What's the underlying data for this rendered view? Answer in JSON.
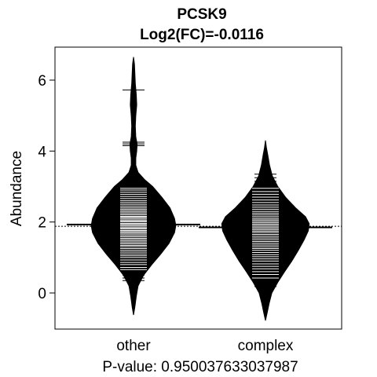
{
  "chart_data": {
    "type": "beanplot",
    "title": "PCSK9",
    "subtitle": "Log2(FC)=-0.0116",
    "xlabel": "P-value: 0.950037633037987",
    "ylabel": "Abundance",
    "ylim": [
      -1.0,
      6.8
    ],
    "yticks": [
      0,
      2,
      4,
      6
    ],
    "categories": [
      "other",
      "complex"
    ],
    "overall_mean": 1.88,
    "grid": false,
    "legend": "none",
    "colors": {
      "bean": "#000000",
      "lines": "#ffffff",
      "background": "#ffffff"
    },
    "groups": [
      {
        "name": "other",
        "mean": 1.93,
        "density_profile": [
          [
            -0.62,
            0.0
          ],
          [
            -0.4,
            0.03
          ],
          [
            -0.1,
            0.06
          ],
          [
            0.2,
            0.1
          ],
          [
            0.5,
            0.22
          ],
          [
            0.8,
            0.4
          ],
          [
            1.1,
            0.6
          ],
          [
            1.4,
            0.78
          ],
          [
            1.7,
            0.9
          ],
          [
            1.9,
            0.93
          ],
          [
            2.1,
            0.9
          ],
          [
            2.4,
            0.8
          ],
          [
            2.7,
            0.62
          ],
          [
            3.0,
            0.42
          ],
          [
            3.2,
            0.24
          ],
          [
            3.4,
            0.1
          ],
          [
            3.6,
            0.05
          ],
          [
            3.8,
            0.05
          ],
          [
            4.0,
            0.07
          ],
          [
            4.2,
            0.08
          ],
          [
            4.4,
            0.05
          ],
          [
            4.7,
            0.04
          ],
          [
            5.0,
            0.05
          ],
          [
            5.3,
            0.07
          ],
          [
            5.6,
            0.06
          ],
          [
            5.9,
            0.04
          ],
          [
            6.2,
            0.03
          ],
          [
            6.45,
            0.02
          ],
          [
            6.65,
            0.0
          ]
        ],
        "observations": [
          0.35,
          0.42,
          0.5,
          0.58,
          0.66,
          0.72,
          0.8,
          0.86,
          0.93,
          1.0,
          1.05,
          1.1,
          1.15,
          1.2,
          1.25,
          1.3,
          1.34,
          1.38,
          1.42,
          1.46,
          1.5,
          1.54,
          1.58,
          1.62,
          1.66,
          1.7,
          1.73,
          1.76,
          1.8,
          1.83,
          1.86,
          1.9,
          1.93,
          1.96,
          2.0,
          2.03,
          2.06,
          2.1,
          2.13,
          2.16,
          2.2,
          2.24,
          2.28,
          2.32,
          2.36,
          2.4,
          2.45,
          2.5,
          2.55,
          2.6,
          2.66,
          2.72,
          2.78,
          2.84,
          2.9,
          2.95,
          4.15,
          4.2,
          4.25,
          5.72
        ]
      },
      {
        "name": "complex",
        "mean": 1.85,
        "density_profile": [
          [
            -0.78,
            0.0
          ],
          [
            -0.55,
            0.04
          ],
          [
            -0.3,
            0.08
          ],
          [
            0.0,
            0.14
          ],
          [
            0.3,
            0.27
          ],
          [
            0.6,
            0.42
          ],
          [
            0.9,
            0.58
          ],
          [
            1.2,
            0.72
          ],
          [
            1.5,
            0.85
          ],
          [
            1.75,
            0.94
          ],
          [
            1.95,
            0.96
          ],
          [
            2.15,
            0.88
          ],
          [
            2.4,
            0.66
          ],
          [
            2.7,
            0.44
          ],
          [
            3.0,
            0.27
          ],
          [
            3.3,
            0.15
          ],
          [
            3.6,
            0.09
          ],
          [
            3.9,
            0.05
          ],
          [
            4.1,
            0.02
          ],
          [
            4.3,
            0.0
          ]
        ],
        "observations": [
          0.18,
          0.3,
          0.42,
          0.52,
          0.6,
          0.68,
          0.75,
          0.82,
          0.9,
          0.96,
          1.02,
          1.08,
          1.14,
          1.2,
          1.25,
          1.3,
          1.35,
          1.4,
          1.45,
          1.5,
          1.55,
          1.6,
          1.65,
          1.7,
          1.74,
          1.78,
          1.82,
          1.86,
          1.9,
          1.94,
          1.98,
          2.02,
          2.06,
          2.1,
          2.15,
          2.2,
          2.25,
          2.3,
          2.36,
          2.42,
          2.48,
          2.55,
          2.62,
          2.7,
          2.78,
          2.86,
          2.95,
          3.05,
          3.15,
          3.25,
          3.35
        ]
      }
    ]
  }
}
